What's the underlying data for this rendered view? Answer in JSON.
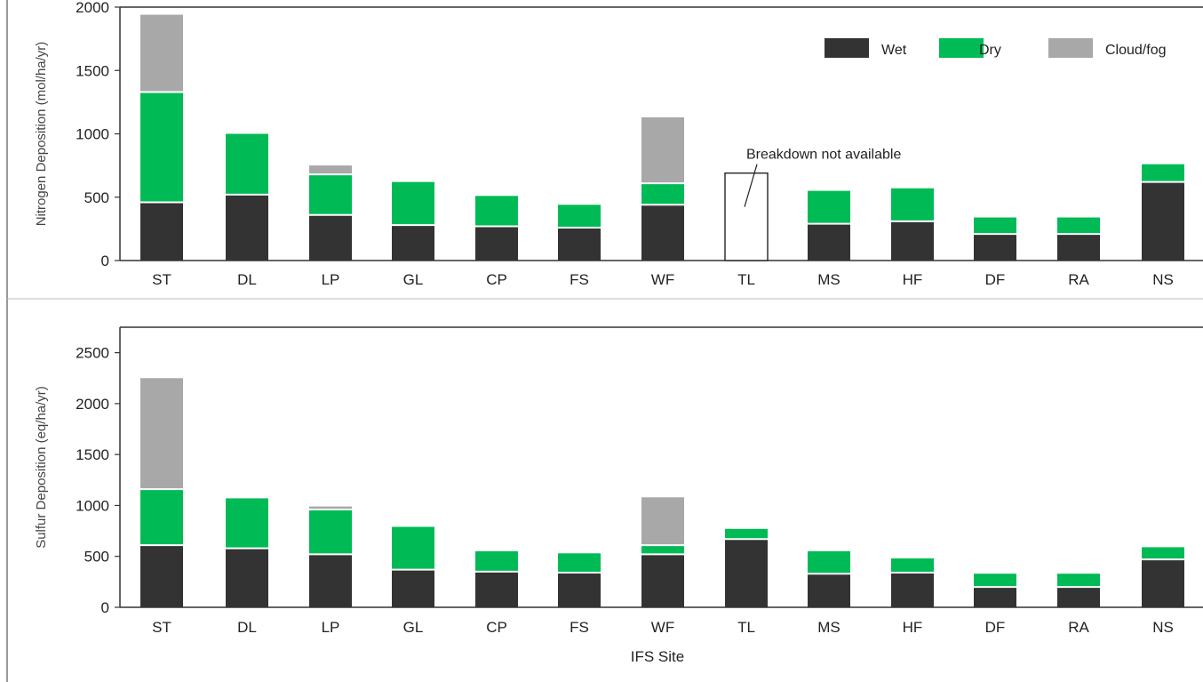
{
  "colors": {
    "wet": "#333333",
    "dry": "#00bb55",
    "cloud": "#a8a8a8",
    "axis": "#333333",
    "frame": "#555555"
  },
  "legend": [
    {
      "key": "wet",
      "label": "Wet"
    },
    {
      "key": "dry",
      "label": "Dry"
    },
    {
      "key": "cloud",
      "label": "Cloud/fog"
    }
  ],
  "shared_xlabel": "IFS Site",
  "chart_data": [
    {
      "type": "bar",
      "stacked": true,
      "ylabel": "Nitrogen Deposition (mol/ha/yr)",
      "ylim": [
        0,
        2000
      ],
      "yticks": [
        0,
        500,
        1000,
        1500,
        2000
      ],
      "categories": [
        "ST",
        "DL",
        "LP",
        "GL",
        "CP",
        "FS",
        "WF",
        "TL",
        "MS",
        "HF",
        "DF",
        "RA",
        "NS"
      ],
      "series": [
        {
          "name": "Wet",
          "key": "wet",
          "values": [
            460,
            520,
            360,
            280,
            270,
            260,
            440,
            null,
            290,
            310,
            210,
            210,
            620
          ]
        },
        {
          "name": "Dry",
          "key": "dry",
          "values": [
            870,
            480,
            320,
            340,
            240,
            180,
            170,
            null,
            260,
            260,
            130,
            130,
            140
          ]
        },
        {
          "name": "Cloud/fog",
          "key": "cloud",
          "values": [
            610,
            0,
            70,
            0,
            0,
            0,
            520,
            null,
            0,
            0,
            0,
            0,
            0
          ]
        }
      ],
      "unbroken_totals": [
        null,
        null,
        null,
        null,
        null,
        null,
        null,
        690,
        null,
        null,
        null,
        null,
        null
      ],
      "annotation": "Breakdown not available",
      "legend_position": "top-right"
    },
    {
      "type": "bar",
      "stacked": true,
      "ylabel": "Sulfur Deposition (eq/ha/yr)",
      "ylim": [
        0,
        2750
      ],
      "yticks": [
        0,
        500,
        1000,
        1500,
        2000,
        2500
      ],
      "categories": [
        "ST",
        "DL",
        "LP",
        "GL",
        "CP",
        "FS",
        "WF",
        "TL",
        "MS",
        "HF",
        "DF",
        "RA",
        "NS"
      ],
      "series": [
        {
          "name": "Wet",
          "key": "wet",
          "values": [
            610,
            580,
            520,
            370,
            350,
            340,
            520,
            670,
            330,
            340,
            200,
            200,
            470
          ]
        },
        {
          "name": "Dry",
          "key": "dry",
          "values": [
            550,
            490,
            440,
            420,
            200,
            190,
            90,
            100,
            220,
            140,
            130,
            130,
            120
          ]
        },
        {
          "name": "Cloud/fog",
          "key": "cloud",
          "values": [
            1090,
            0,
            30,
            0,
            0,
            0,
            470,
            0,
            0,
            0,
            0,
            0,
            0
          ]
        }
      ]
    }
  ]
}
